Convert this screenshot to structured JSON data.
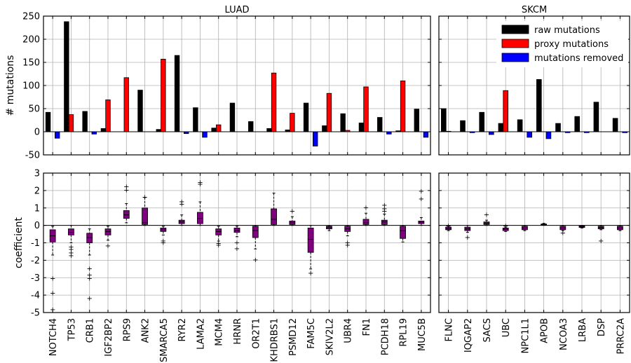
{
  "colors": {
    "raw": "#000000",
    "proxy": "#ff0000",
    "removed": "#0000ff",
    "box": "#800080",
    "grid": "#b0b0b0",
    "highlight_label": "#ff0000",
    "normal_label": "#000000"
  },
  "chart_data": [
    {
      "type": "bar",
      "title": "LUAD",
      "ylabel": "# mutations",
      "ylim": [
        -50,
        250
      ],
      "yticks": [
        -50,
        0,
        50,
        100,
        150,
        200,
        250
      ],
      "grid": true,
      "categories": [
        "NOTCH4",
        "TP53",
        "CRB1",
        "IGF2BP2",
        "RPS9",
        "ANK2",
        "SMARCA5",
        "RYR2",
        "LAMA2",
        "MCM4",
        "HRNR",
        "OR2T1",
        "KHDRBS1",
        "PSMD12",
        "FAM5C",
        "SKIV2L2",
        "UBR4",
        "FN1",
        "PCDH18",
        "RPL19",
        "MUC5B"
      ],
      "series": [
        {
          "name": "raw mutations",
          "color_key": "raw",
          "values": [
            42,
            238,
            44,
            7,
            0,
            90,
            5,
            165,
            52,
            8,
            62,
            22,
            7,
            4,
            62,
            13,
            39,
            19,
            31,
            2,
            49
          ]
        },
        {
          "name": "proxy mutations",
          "color_key": "proxy",
          "values": [
            0,
            37,
            0,
            69,
            117,
            0,
            157,
            0,
            0,
            15,
            0,
            0,
            127,
            40,
            0,
            83,
            3,
            97,
            0,
            110,
            0
          ]
        },
        {
          "name": "mutations removed",
          "color_key": "removed",
          "values": [
            -14,
            0,
            -5,
            0,
            0,
            0,
            0,
            -4,
            -12,
            0,
            0,
            0,
            0,
            0,
            -31,
            0,
            0,
            0,
            -5,
            0,
            -12
          ]
        }
      ]
    },
    {
      "type": "bar",
      "title": "SKCM",
      "ylim": [
        -50,
        250
      ],
      "grid": true,
      "legend_position": "top-right",
      "legend": [
        "raw mutations",
        "proxy mutations",
        "mutations removed"
      ],
      "categories": [
        "FLNC",
        "IQGAP2",
        "SACS",
        "UBC",
        "NPC1L1",
        "APOB",
        "NCOA3",
        "LRBA",
        "DSP",
        "PRRC2A"
      ],
      "series": [
        {
          "name": "raw mutations",
          "color_key": "raw",
          "values": [
            50,
            24,
            42,
            18,
            26,
            113,
            18,
            33,
            64,
            29
          ]
        },
        {
          "name": "proxy mutations",
          "color_key": "proxy",
          "values": [
            1,
            0,
            0,
            89,
            0,
            0,
            0,
            0,
            0,
            0
          ]
        },
        {
          "name": "mutations removed",
          "color_key": "removed",
          "values": [
            0,
            -2,
            -6,
            0,
            -12,
            -15,
            -2,
            -2,
            0,
            -2
          ]
        }
      ]
    },
    {
      "type": "box",
      "ylabel": "coefficient",
      "ylim": [
        -5,
        3
      ],
      "yticks": [
        -5,
        -4,
        -3,
        -2,
        -1,
        0,
        1,
        2,
        3
      ],
      "grid": true,
      "categories": [
        "NOTCH4",
        "TP53",
        "CRB1",
        "IGF2BP2",
        "RPS9",
        "ANK2",
        "SMARCA5",
        "RYR2",
        "LAMA2",
        "MCM4",
        "HRNR",
        "OR2T1",
        "KHDRBS1",
        "PSMD12",
        "FAM5C",
        "SKIV2L2",
        "UBR4",
        "FN1",
        "PCDH18",
        "RPL19",
        "MUC5B"
      ],
      "highlighted": [
        "IGF2BP2",
        "RPS9",
        "SMARCA5",
        "MCM4",
        "KHDRBS1",
        "PSMD12",
        "SKIV2L2",
        "FN1",
        "RPL19"
      ],
      "boxes": [
        {
          "q1": -0.95,
          "q3": -0.25,
          "median": -0.6,
          "wlo": -1.7,
          "whi": -0.05,
          "fliers": [
            -3.0,
            -3.85,
            -4.8
          ]
        },
        {
          "q1": -0.55,
          "q3": -0.2,
          "median": -0.4,
          "wlo": -1.0,
          "whi": 0.0,
          "fliers": [
            -1.2,
            -1.35,
            -1.55,
            -1.7
          ]
        },
        {
          "q1": -1.0,
          "q3": -0.45,
          "median": -0.7,
          "wlo": -1.7,
          "whi": -0.2,
          "fliers": [
            -2.45,
            -2.8,
            -3.0,
            -4.15
          ]
        },
        {
          "q1": -0.55,
          "q3": -0.2,
          "median": -0.35,
          "wlo": -0.85,
          "whi": -0.05,
          "fliers": [
            -1.15
          ]
        },
        {
          "q1": 0.4,
          "q3": 0.85,
          "median": 0.6,
          "wlo": 0.15,
          "whi": 1.25,
          "fliers": [
            2.05,
            2.25
          ]
        },
        {
          "q1": 0.05,
          "q3": 1.0,
          "median": 0.15,
          "wlo": 0.0,
          "whi": 1.6,
          "fliers": [
            1.65
          ]
        },
        {
          "q1": -0.35,
          "q3": -0.15,
          "median": -0.25,
          "wlo": -0.55,
          "whi": -0.05,
          "fliers": [
            -0.85,
            -0.95
          ]
        },
        {
          "q1": 0.1,
          "q3": 0.3,
          "median": 0.2,
          "wlo": 0.0,
          "whi": 0.6,
          "fliers": [
            1.25,
            1.4
          ]
        },
        {
          "q1": 0.1,
          "q3": 0.75,
          "median": 0.4,
          "wlo": 0.0,
          "whi": 1.35,
          "fliers": [
            2.4,
            2.5
          ]
        },
        {
          "q1": -0.55,
          "q3": -0.2,
          "median": -0.35,
          "wlo": -0.9,
          "whi": -0.05,
          "fliers": [
            -1.0,
            -1.1
          ]
        },
        {
          "q1": -0.4,
          "q3": -0.15,
          "median": -0.3,
          "wlo": -0.65,
          "whi": -0.05,
          "fliers": [
            -0.95,
            -1.3
          ]
        },
        {
          "q1": -0.7,
          "q3": -0.05,
          "median": -0.3,
          "wlo": -1.35,
          "whi": 0.0,
          "fliers": [
            -1.95
          ]
        },
        {
          "q1": 0.05,
          "q3": 0.95,
          "median": 0.35,
          "wlo": 0.0,
          "whi": 1.85,
          "fliers": []
        },
        {
          "q1": 0.05,
          "q3": 0.25,
          "median": 0.15,
          "wlo": 0.0,
          "whi": 0.5,
          "fliers": [
            0.85
          ]
        },
        {
          "q1": -1.55,
          "q3": -0.15,
          "median": -0.8,
          "wlo": -2.5,
          "whi": 0.0,
          "fliers": [
            -2.7
          ]
        },
        {
          "q1": -0.2,
          "q3": -0.05,
          "median": -0.1,
          "wlo": -0.3,
          "whi": 0.0,
          "fliers": []
        },
        {
          "q1": -0.35,
          "q3": -0.05,
          "median": -0.2,
          "wlo": -0.6,
          "whi": 0.0,
          "fliers": [
            -0.95,
            -1.1
          ]
        },
        {
          "q1": 0.05,
          "q3": 0.35,
          "median": 0.15,
          "wlo": 0.0,
          "whi": 0.7,
          "fliers": [
            1.05
          ]
        },
        {
          "q1": 0.05,
          "q3": 0.3,
          "median": 0.2,
          "wlo": 0.0,
          "whi": 0.65,
          "fliers": [
            0.85,
            1.0,
            1.2
          ]
        },
        {
          "q1": -0.75,
          "q3": -0.05,
          "median": -0.3,
          "wlo": -0.95,
          "whi": 0.0,
          "fliers": []
        },
        {
          "q1": 0.1,
          "q3": 0.25,
          "median": 0.18,
          "wlo": 0.0,
          "whi": 0.45,
          "fliers": [
            1.55,
            2.0
          ]
        }
      ]
    },
    {
      "type": "box",
      "ylim": [
        -5,
        3
      ],
      "grid": true,
      "categories": [
        "FLNC",
        "IQGAP2",
        "SACS",
        "UBC",
        "NPC1L1",
        "APOB",
        "NCOA3",
        "LRBA",
        "DSP",
        "PRRC2A"
      ],
      "highlighted": [
        "UBC"
      ],
      "boxes": [
        {
          "q1": -0.25,
          "q3": -0.1,
          "median": -0.18,
          "wlo": -0.3,
          "whi": -0.05,
          "fliers": [
            0.0
          ]
        },
        {
          "q1": -0.3,
          "q3": -0.1,
          "median": -0.2,
          "wlo": -0.4,
          "whi": 0.0,
          "fliers": [
            -0.65
          ]
        },
        {
          "q1": 0.05,
          "q3": 0.2,
          "median": 0.12,
          "wlo": 0.0,
          "whi": 0.3,
          "fliers": [
            0.65
          ]
        },
        {
          "q1": -0.3,
          "q3": -0.15,
          "median": -0.22,
          "wlo": -0.35,
          "whi": -0.1,
          "fliers": [
            0.0
          ]
        },
        {
          "q1": -0.25,
          "q3": -0.05,
          "median": -0.15,
          "wlo": -0.3,
          "whi": 0.0,
          "fliers": []
        },
        {
          "q1": 0.02,
          "q3": 0.08,
          "median": 0.05,
          "wlo": 0.0,
          "whi": 0.12,
          "fliers": []
        },
        {
          "q1": -0.25,
          "q3": -0.05,
          "median": -0.15,
          "wlo": -0.3,
          "whi": 0.0,
          "fliers": [
            -0.4
          ]
        },
        {
          "q1": -0.12,
          "q3": -0.03,
          "median": -0.07,
          "wlo": -0.15,
          "whi": 0.0,
          "fliers": []
        },
        {
          "q1": -0.2,
          "q3": -0.05,
          "median": -0.12,
          "wlo": -0.25,
          "whi": 0.0,
          "fliers": [
            -0.85
          ]
        },
        {
          "q1": -0.25,
          "q3": -0.05,
          "median": -0.15,
          "wlo": -0.3,
          "whi": 0.0,
          "fliers": []
        }
      ]
    }
  ]
}
